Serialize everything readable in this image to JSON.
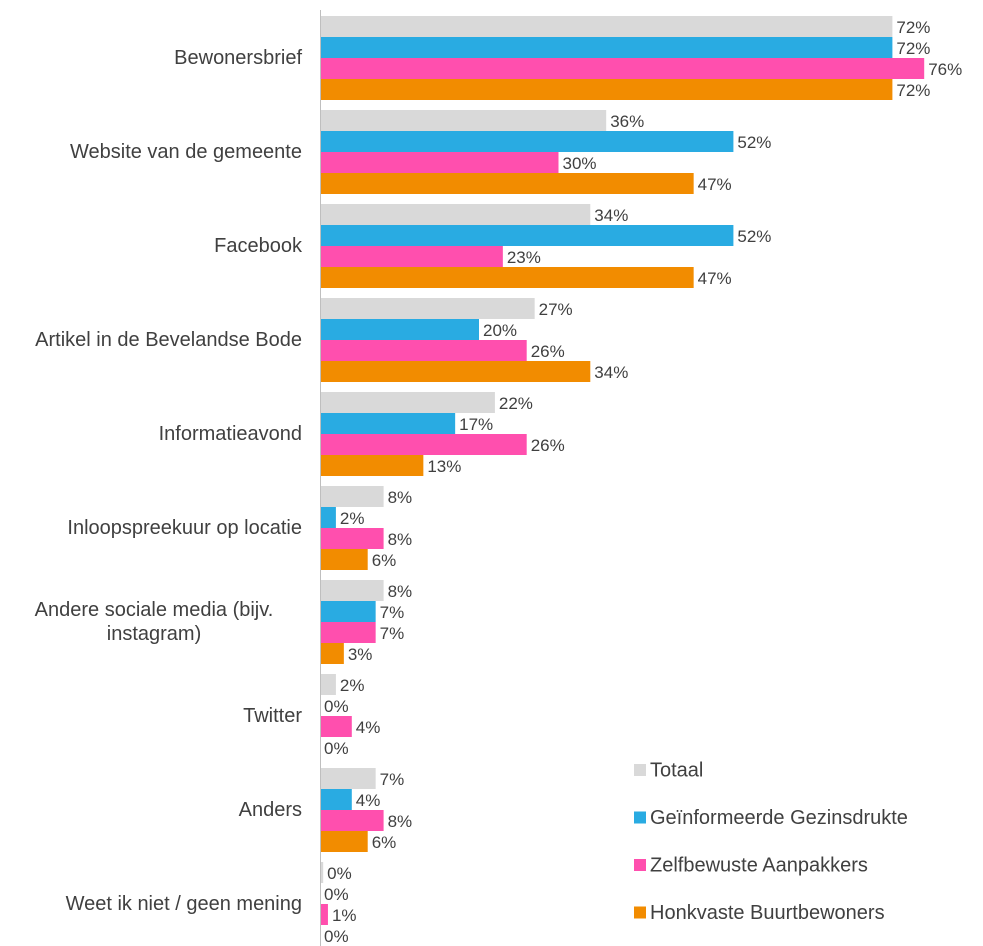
{
  "chart_data": {
    "type": "bar",
    "orientation": "horizontal",
    "categories": [
      "Bewonersbrief",
      "Website van de gemeente",
      "Facebook",
      "Artikel in de Bevelandse Bode",
      "Informatieavond",
      "Inloopspreekuur op locatie",
      "Andere sociale media (bijv. instagram)",
      "Twitter",
      "Anders",
      "Weet ik niet / geen mening"
    ],
    "series": [
      {
        "name": "Totaal",
        "color": "#d9d9d9",
        "values": [
          72,
          36,
          34,
          27,
          22,
          8,
          8,
          2,
          7,
          0.4
        ],
        "value_labels": [
          "72%",
          "36%",
          "34%",
          "27%",
          "22%",
          "8%",
          "8%",
          "2%",
          "7%",
          "0%"
        ]
      },
      {
        "name": "Geïnformeerde Gezinsdrukte",
        "color": "#29abe2",
        "values": [
          72,
          52,
          52,
          20,
          17,
          2,
          7,
          0,
          4,
          0
        ],
        "value_labels": [
          "72%",
          "52%",
          "52%",
          "20%",
          "17%",
          "2%",
          "7%",
          "0%",
          "4%",
          "0%"
        ]
      },
      {
        "name": "Zelfbewuste Aanpakkers",
        "color": "#ff4fae",
        "values": [
          76,
          30,
          23,
          26,
          26,
          8,
          7,
          4,
          8,
          1
        ],
        "value_labels": [
          "76%",
          "30%",
          "23%",
          "26%",
          "26%",
          "8%",
          "7%",
          "4%",
          "8%",
          "1%"
        ]
      },
      {
        "name": "Honkvaste Buurtbewoners",
        "color": "#f28c00",
        "values": [
          72,
          47,
          47,
          34,
          13,
          6,
          3,
          0,
          6,
          0
        ],
        "value_labels": [
          "72%",
          "47%",
          "47%",
          "34%",
          "13%",
          "6%",
          "3%",
          "0%",
          "6%",
          "0%"
        ]
      }
    ],
    "legend": "lower right"
  }
}
